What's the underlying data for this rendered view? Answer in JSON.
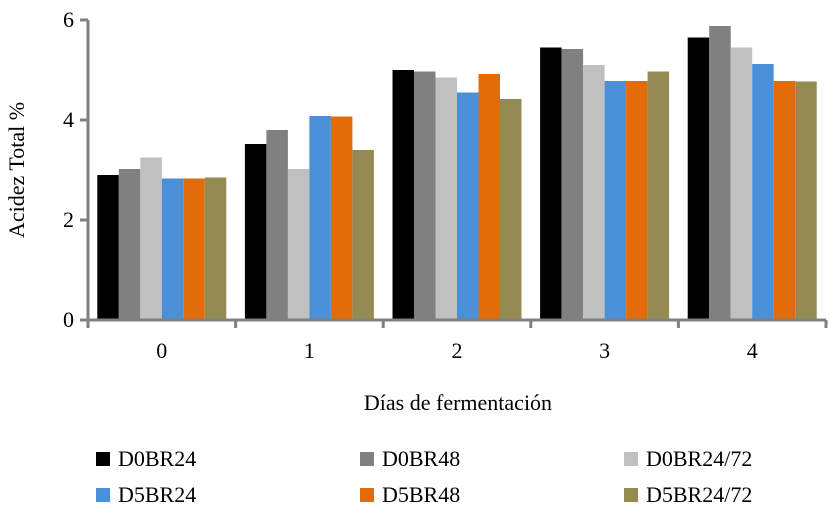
{
  "chart_data": {
    "type": "bar",
    "title": "",
    "xlabel": "Días de fermentación",
    "ylabel": "Acidez Total  %",
    "categories": [
      "0",
      "1",
      "2",
      "3",
      "4"
    ],
    "ylim": [
      0,
      6
    ],
    "yticks": [
      "0",
      "2",
      "4",
      "6"
    ],
    "grid": false,
    "legend_position": "bottom",
    "series": [
      {
        "name": "D0BR24",
        "color": "#000000",
        "values": [
          2.9,
          3.52,
          5.0,
          5.45,
          5.65
        ]
      },
      {
        "name": "D0BR48",
        "color": "#808080",
        "values": [
          3.02,
          3.8,
          4.97,
          5.42,
          5.88
        ]
      },
      {
        "name": "D0BR24/72",
        "color": "#c0c0c0",
        "values": [
          3.25,
          3.02,
          4.85,
          5.1,
          5.45
        ]
      },
      {
        "name": "D5BR24",
        "color": "#4a90d9",
        "values": [
          2.83,
          4.08,
          4.55,
          4.78,
          5.12
        ]
      },
      {
        "name": "D5BR48",
        "color": "#e36c0a",
        "values": [
          2.83,
          4.07,
          4.92,
          4.78,
          4.78
        ]
      },
      {
        "name": "D5BR24/72",
        "color": "#948a54",
        "values": [
          2.85,
          3.4,
          4.42,
          4.97,
          4.77
        ]
      }
    ]
  }
}
